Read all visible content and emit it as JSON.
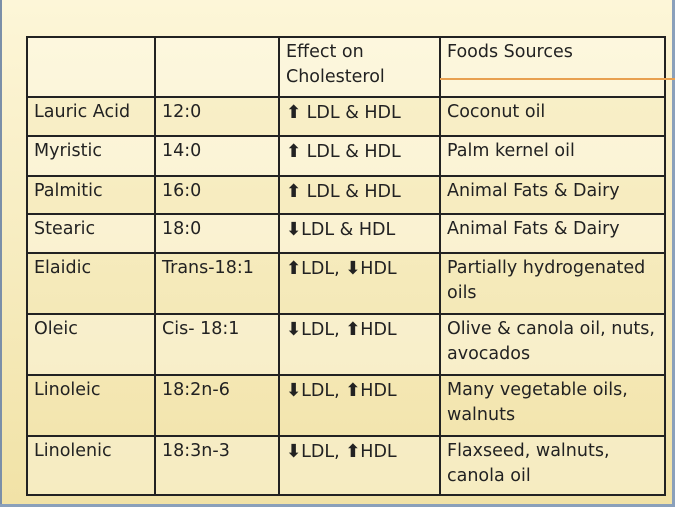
{
  "table": {
    "headers": [
      "",
      "",
      "Effect on Cholesterol",
      "Foods Sources"
    ],
    "rows": [
      {
        "acid": "Lauric Acid",
        "formula": "12:0",
        "ldl_dir": "up",
        "effect": " LDL & HDL",
        "foods": "Coconut oil"
      },
      {
        "acid": "Myristic",
        "formula": "14:0",
        "ldl_dir": "up",
        "effect": " LDL & HDL",
        "foods": "Palm kernel oil"
      },
      {
        "acid": "Palmitic",
        "formula": "16:0",
        "ldl_dir": "up",
        "effect": " LDL & HDL",
        "foods": "Animal Fats & Dairy"
      },
      {
        "acid": "Stearic",
        "formula": "18:0",
        "ldl_dir": "down",
        "effect": "LDL & HDL",
        "foods": "Animal Fats & Dairy"
      },
      {
        "acid": "Elaidic",
        "formula": "Trans-18:1",
        "ldl_label": "LDL, ",
        "hdl_label": "HDL",
        "ldl_dir": "up",
        "hdl_dir": "down",
        "foods": "Partially hydrogenated oils"
      },
      {
        "acid": "Oleic",
        "formula": "Cis- 18:1",
        "ldl_label": "LDL, ",
        "hdl_label": "HDL",
        "ldl_dir": "down",
        "hdl_dir": "up",
        "foods": "Olive & canola oil, nuts, avocados"
      },
      {
        "acid": "Linoleic",
        "formula": "18:2n-6",
        "ldl_label": "LDL, ",
        "hdl_label": "HDL",
        "ldl_dir": "down",
        "hdl_dir": "up",
        "foods": "Many vegetable oils, walnuts"
      },
      {
        "acid": "Linolenic",
        "formula": "18:3n-3",
        "ldl_label": "LDL, ",
        "hdl_label": "HDL",
        "ldl_dir": "down",
        "hdl_dir": "up",
        "foods": "Flaxseed, walnuts, canola oil"
      }
    ]
  },
  "colors": {
    "accent_line": "#e8a050",
    "table_border": "#222222",
    "background": "#f6ebbd"
  },
  "icons": {
    "up": "arrow-up-icon",
    "down": "arrow-down-icon"
  }
}
